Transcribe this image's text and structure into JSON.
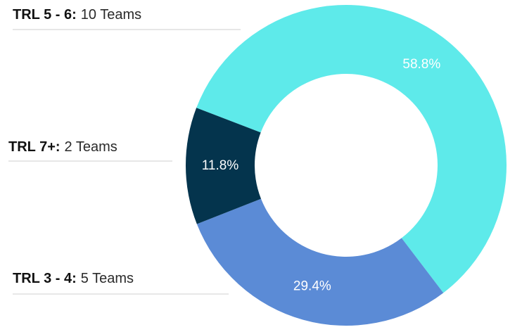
{
  "chart_data": {
    "type": "pie",
    "categories": [
      "TRL 5 - 6:",
      "TRL 3 - 4:",
      "TRL 7+:"
    ],
    "annotations": [
      "10 Teams",
      "5 Teams",
      "2 Teams"
    ],
    "values": [
      58.8,
      29.4,
      11.8
    ],
    "value_labels": [
      "58.8%",
      "29.4%",
      "11.8%"
    ],
    "colors": [
      "#5eeaea",
      "#5b8bd6",
      "#04344d"
    ]
  }
}
